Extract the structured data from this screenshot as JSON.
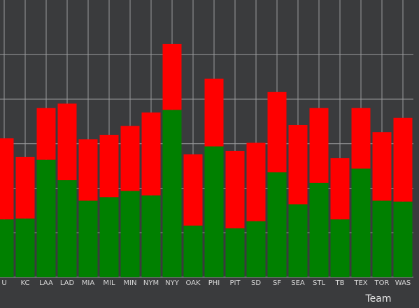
{
  "chart_data": {
    "type": "bar",
    "stacked": true,
    "xlabel": "Team",
    "ylabel": "",
    "grid": true,
    "colors": {
      "background": "#3a3b3d",
      "grid": "#9a9b9d",
      "bottom_series": "#008000",
      "top_series": "#ff0000",
      "tick_text": "#d8d8d8"
    },
    "categories": [
      "U",
      "KC",
      "LAA",
      "LAD",
      "MIA",
      "MIL",
      "MIN",
      "NYM",
      "NYY",
      "OAK",
      "PHI",
      "PIT",
      "SD",
      "SF",
      "SEA",
      "STL",
      "TB",
      "TEX",
      "TOR",
      "WAS"
    ],
    "ylim": [
      0,
      125
    ],
    "series": [
      {
        "values": [
          32.5,
          33.0,
          66.0,
          54.5,
          43.0,
          45.0,
          48.5,
          46.0,
          94.0,
          29.0,
          73.5,
          27.5,
          31.5,
          59.0,
          41.0,
          53.0,
          32.5,
          61.0,
          43.0,
          42.5
        ]
      },
      {
        "values": [
          45.5,
          34.5,
          29.0,
          43.0,
          34.5,
          35.0,
          36.5,
          46.5,
          37.0,
          40.0,
          38.0,
          43.5,
          44.0,
          45.0,
          44.5,
          42.0,
          34.5,
          34.0,
          38.5,
          47.0
        ]
      }
    ]
  }
}
